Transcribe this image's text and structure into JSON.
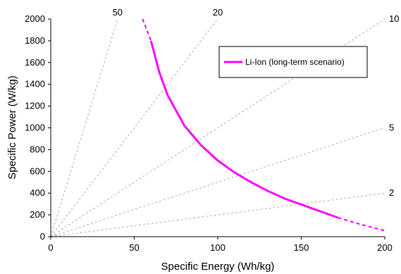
{
  "chart_data": {
    "type": "line",
    "xlabel": "Specific Energy (Wh/kg)",
    "ylabel": "Specific Power (W/kg)",
    "xlim": [
      0,
      200
    ],
    "ylim": [
      0,
      2000
    ],
    "xticks": [
      0,
      50,
      100,
      150,
      200
    ],
    "yticks": [
      0,
      200,
      400,
      600,
      800,
      1000,
      1200,
      1400,
      1600,
      1800,
      2000
    ],
    "grid": false,
    "legend_position": "top-right",
    "ratio_lines": [
      {
        "label": "50",
        "ratio": 50
      },
      {
        "label": "20",
        "ratio": 20
      },
      {
        "label": "10",
        "ratio": 10
      },
      {
        "label": "5",
        "ratio": 5
      },
      {
        "label": "2",
        "ratio": 2
      }
    ],
    "series": [
      {
        "name": "Li-Ion (long-term scenario)",
        "color": "#ff00ff",
        "x": [
          55,
          60,
          65,
          70,
          80,
          90,
          100,
          110,
          120,
          130,
          140,
          150,
          160,
          172,
          185,
          200
        ],
        "y": [
          2000,
          1800,
          1510,
          1300,
          1020,
          840,
          700,
          590,
          500,
          420,
          350,
          295,
          240,
          175,
          115,
          55
        ],
        "solid_range": [
          60,
          172
        ]
      }
    ]
  }
}
